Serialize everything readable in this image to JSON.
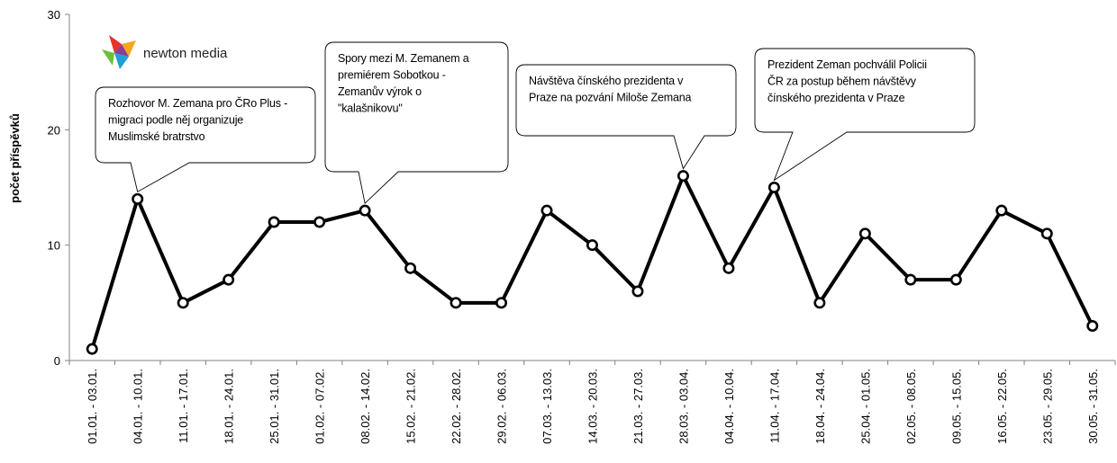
{
  "logo": {
    "text": "newton media"
  },
  "chart_data": {
    "type": "line",
    "title": "",
    "ylabel": "počet příspěvků",
    "xlabel": "",
    "ylim": [
      0,
      30
    ],
    "yticks": [
      0,
      10,
      20,
      30
    ],
    "grid": false,
    "categories": [
      "01.01. - 03.01.",
      "04.01. - 10.01.",
      "11.01. - 17.01.",
      "18.01. - 24.01.",
      "25.01. - 31.01.",
      "01.02. - 07.02.",
      "08.02. - 14.02.",
      "15.02. - 21.02.",
      "22.02. - 28.02.",
      "29.02. - 06.03.",
      "07.03. - 13.03.",
      "14.03. - 20.03.",
      "21.03. - 27.03.",
      "28.03. - 03.04.",
      "04.04. - 10.04.",
      "11.04. - 17.04.",
      "18.04. - 24.04.",
      "25.04. - 01.05.",
      "02.05. - 08.05.",
      "09.05. - 15.05.",
      "16.05. - 22.05.",
      "23.05. - 29.05.",
      "30.05. - 31.05."
    ],
    "series": [
      {
        "values": [
          1,
          14,
          5,
          7,
          12,
          12,
          13,
          8,
          5,
          5,
          13,
          10,
          6,
          16,
          8,
          15,
          5,
          11,
          7,
          7,
          13,
          11,
          3
        ]
      }
    ],
    "annotations": [
      {
        "point_index": 1,
        "lines": [
          "Rozhovor M. Zemana pro ČRo Plus -",
          "migraci podle něj organizuje",
          "Muslimské bratrstvo"
        ]
      },
      {
        "point_index": 6,
        "lines": [
          "Spory mezi M. Zemanem a",
          "premiérem Sobotkou -",
          "Zemanův výrok o",
          "\"kalašnikovu\""
        ]
      },
      {
        "point_index": 13,
        "lines": [
          "Návštěva čínského prezidenta v",
          "Praze na pozvání Miloše Zemana"
        ]
      },
      {
        "point_index": 15,
        "lines": [
          "Prezident Zeman pochválil Policii",
          "ČR za postup během návštěvy",
          "čínského prezidenta v Praze"
        ]
      }
    ]
  }
}
